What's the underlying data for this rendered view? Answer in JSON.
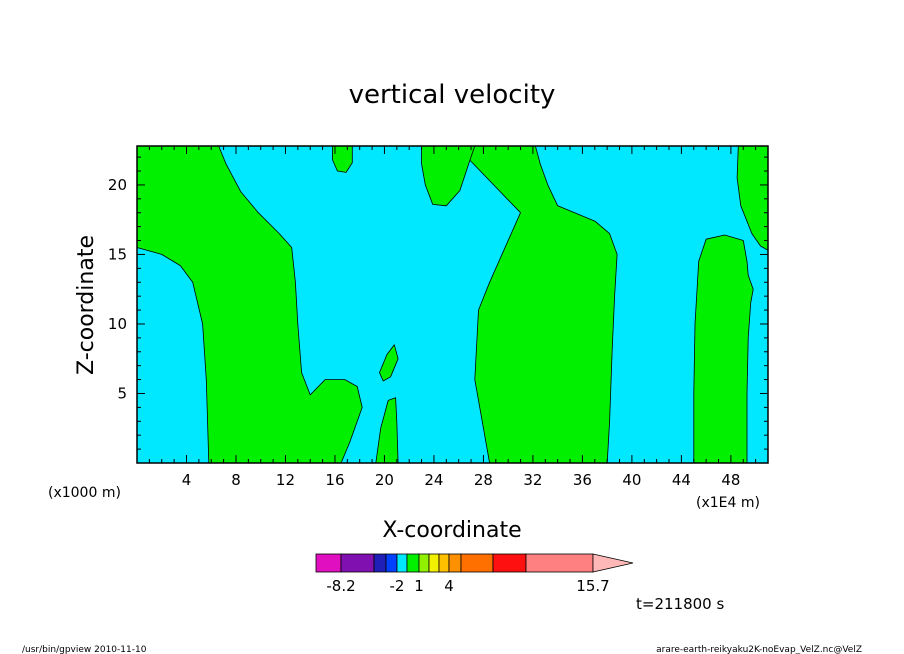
{
  "chart_data": {
    "type": "heatmap",
    "title": "vertical velocity",
    "xlabel": "X-coordinate",
    "ylabel": "Z-coordinate",
    "x_unit_left": "(x1000 m)",
    "x_unit_right": "(x1E4 m)",
    "xlim": [
      0,
      51
    ],
    "ylim": [
      0,
      22.8
    ],
    "x_ticks": [
      4,
      8,
      12,
      16,
      20,
      24,
      28,
      32,
      36,
      40,
      44,
      48
    ],
    "y_ticks": [
      5,
      10,
      15,
      20
    ],
    "time_label": "t=211800 s",
    "colors": {
      "negative": "#00e8ff",
      "positive": "#00f000"
    },
    "positive_regions": [
      [
        [
          0,
          15.5
        ],
        [
          2,
          15
        ],
        [
          3.5,
          14.2
        ],
        [
          4.5,
          13
        ],
        [
          5.3,
          10
        ],
        [
          5.6,
          6
        ],
        [
          5.8,
          0
        ],
        [
          16.5,
          0
        ],
        [
          17.2,
          1.5
        ],
        [
          18.2,
          4
        ],
        [
          17.8,
          5.5
        ],
        [
          16.8,
          6
        ],
        [
          15.2,
          6
        ],
        [
          14,
          4.9
        ],
        [
          13.3,
          6.5
        ],
        [
          13,
          10
        ],
        [
          12.8,
          13
        ],
        [
          12.5,
          15.5
        ],
        [
          11.5,
          16.5
        ],
        [
          9.8,
          18
        ],
        [
          8.4,
          19.5
        ],
        [
          7.2,
          21.5
        ],
        [
          6.6,
          22.8
        ],
        [
          0,
          22.8
        ]
      ],
      [
        [
          28.5,
          0
        ],
        [
          38,
          0
        ],
        [
          38.2,
          3
        ],
        [
          38.4,
          8
        ],
        [
          38.6,
          12
        ],
        [
          38.8,
          15
        ],
        [
          38.2,
          16.5
        ],
        [
          37,
          17.4
        ],
        [
          34,
          18.5
        ],
        [
          33.2,
          20
        ],
        [
          32.6,
          21.5
        ],
        [
          32.2,
          22.8
        ],
        [
          24.3,
          22.8
        ],
        [
          24.3,
          22.8
        ],
        [
          25.8,
          22.8
        ],
        [
          31,
          18
        ],
        [
          28.5,
          13
        ],
        [
          27.6,
          11
        ],
        [
          27.3,
          6
        ],
        [
          27.9,
          3
        ]
      ],
      [
        [
          19.3,
          0
        ],
        [
          21.1,
          0
        ],
        [
          21,
          3
        ],
        [
          20.9,
          4.7
        ],
        [
          20.3,
          4.5
        ],
        [
          19.7,
          2.5
        ]
      ],
      [
        [
          19.6,
          6.5
        ],
        [
          20.2,
          7.8
        ],
        [
          20.8,
          8.5
        ],
        [
          21.1,
          7.5
        ],
        [
          20.5,
          6.2
        ],
        [
          19.9,
          5.9
        ]
      ],
      [
        [
          15.8,
          22.8
        ],
        [
          17.4,
          22.8
        ],
        [
          17.4,
          21.6
        ],
        [
          16.9,
          20.9
        ],
        [
          16.2,
          21
        ],
        [
          15.8,
          21.8
        ]
      ],
      [
        [
          23,
          22.8
        ],
        [
          27.3,
          22.8
        ],
        [
          26.8,
          21.5
        ],
        [
          26.1,
          19.6
        ],
        [
          25,
          18.5
        ],
        [
          23.9,
          18.6
        ],
        [
          23.3,
          20
        ],
        [
          23,
          21.5
        ]
      ],
      [
        [
          45,
          0
        ],
        [
          49.3,
          0
        ],
        [
          49.3,
          5
        ],
        [
          49.4,
          9
        ],
        [
          49.6,
          11.5
        ],
        [
          49.8,
          12.5
        ],
        [
          49.4,
          13.5
        ],
        [
          49.3,
          14.5
        ],
        [
          49,
          16
        ],
        [
          47.5,
          16.4
        ],
        [
          46,
          16.1
        ],
        [
          45.4,
          14.5
        ],
        [
          45.1,
          10
        ],
        [
          45,
          5
        ]
      ],
      [
        [
          48.6,
          22.8
        ],
        [
          51,
          22.8
        ],
        [
          51,
          15.3
        ],
        [
          50.4,
          15.6
        ],
        [
          49.7,
          16.5
        ],
        [
          48.8,
          18.5
        ],
        [
          48.5,
          20.5
        ]
      ]
    ],
    "colorbar": {
      "ticks": [
        "-8.2",
        "-2",
        "1",
        "4",
        "15.7"
      ],
      "bins": [
        {
          "color": "#e010c0"
        },
        {
          "color": "#8010b0"
        },
        {
          "color": "#2020b8"
        },
        {
          "color": "#0040ff"
        },
        {
          "color": "#00e8ff"
        },
        {
          "color": "#00f000"
        },
        {
          "color": "#90f000"
        },
        {
          "color": "#f0f000"
        },
        {
          "color": "#ffc000"
        },
        {
          "color": "#ff9000"
        },
        {
          "color": "#ff7000"
        },
        {
          "color": "#ff1010"
        },
        {
          "color": "#ff8080"
        },
        {
          "color": "#ffb8b8"
        }
      ]
    }
  },
  "footer": {
    "left": "/usr/bin/gpview   2010-11-10",
    "right": "arare-earth-reikyaku2K-noEvap_VelZ.nc@VelZ"
  }
}
